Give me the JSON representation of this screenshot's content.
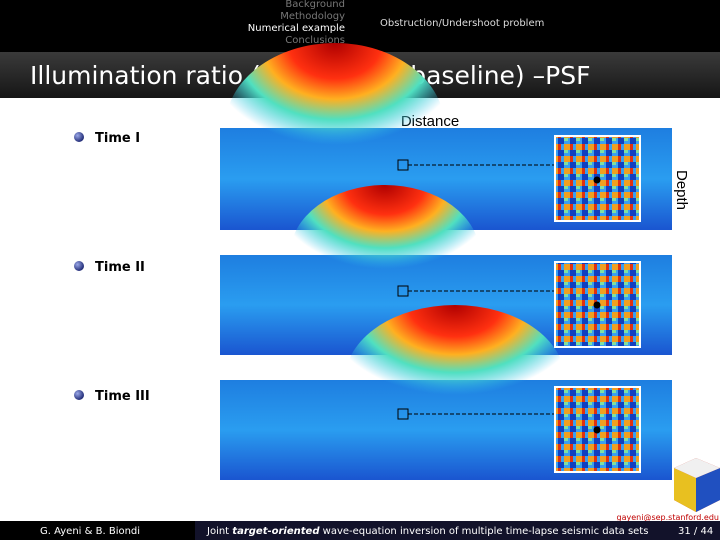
{
  "header": {
    "nav": [
      "Background",
      "Methodology",
      "Numerical example",
      "Conclusions"
    ],
    "section": "Obstruction/Undershoot problem"
  },
  "slide": {
    "title": "Illumination ratio (monitor vs. baseline) –PSF",
    "x_label": "Distance",
    "y_label": "Depth",
    "items": [
      "Time I",
      "Time II",
      "Time III"
    ]
  },
  "footer": {
    "authors": "G. Ayeni & B. Biondi",
    "title_parts": [
      "Joint ",
      "target-oriented",
      " wave-equation inversion of multiple time-lapse seismic data sets"
    ],
    "email": "gayeni@sep.stanford.edu",
    "page": "31 / 44"
  }
}
